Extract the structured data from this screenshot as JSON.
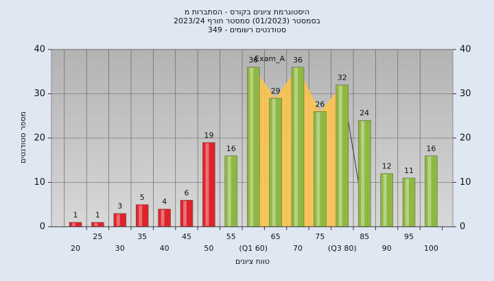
{
  "chart_data": {
    "type": "bar",
    "title": "היסטוגרמת ציונים בקורס - הסתברות מ",
    "subtitle": "בסמסטר  (01/2023)  סמסטר חורף  2023/24",
    "subtitle2": "סטודנטים רשומים - 349",
    "annotation": "Exam_A",
    "x_label": "טווח ציונים",
    "y_label": "מספר סטודנטים",
    "categories": [
      "20",
      "25",
      "30",
      "35",
      "40",
      "45",
      "50",
      "55",
      "(Q1 60)",
      "65",
      "70",
      "75",
      "(Q3 80)",
      "85",
      "90",
      "95",
      "100"
    ],
    "values": [
      1,
      1,
      3,
      5,
      4,
      6,
      19,
      16,
      36,
      29,
      36,
      26,
      32,
      24,
      12,
      11,
      16
    ],
    "colors": [
      "#e0232a",
      "#e0232a",
      "#e0232a",
      "#e0232a",
      "#e0232a",
      "#e0232a",
      "#e0232a",
      "#8fb842",
      "#8fb842",
      "#8fb842",
      "#8fb842",
      "#8fb842",
      "#8fb842",
      "#8fb842",
      "#8fb842",
      "#8fb842",
      "#8fb842"
    ],
    "area_color": "#f9c34e",
    "ylim": [
      0,
      40
    ],
    "yticks": [
      0,
      10,
      20,
      30,
      40
    ],
    "y2lim": [
      0,
      40
    ],
    "y2ticks": [
      0,
      10,
      20,
      30,
      40
    ],
    "grid": true
  }
}
